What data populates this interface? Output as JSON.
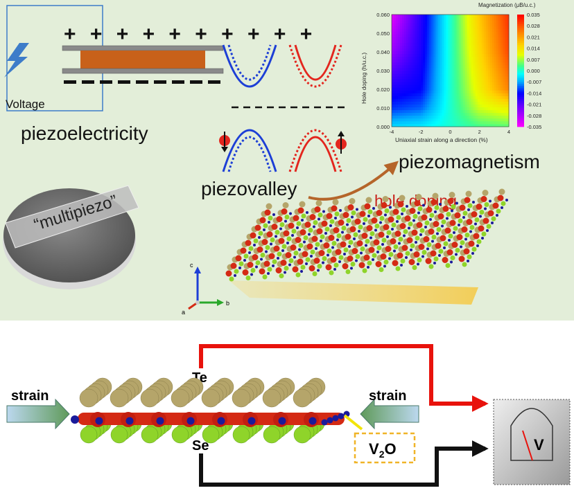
{
  "top_panel": {
    "voltage_label": "Voltage",
    "plus_signs": "+ + + + + + + + + +",
    "piezoelectricity_label": "piezoelectricity",
    "piezovalley_label": "piezovalley",
    "piezomagnetism_label": "piezomagnetism",
    "hole_doping_label": "hole doping",
    "disk_label": "“multipiezo”",
    "axis_labels": {
      "a": "a",
      "b": "b",
      "c": "c"
    }
  },
  "bottom_panel": {
    "strain_left": "strain",
    "strain_right": "strain",
    "te_label": "Te",
    "se_label": "Se",
    "v2o_label_main": "V",
    "v2o_label_sub": "2",
    "v2o_label_end": "O",
    "voltmeter_label": "V"
  },
  "colors": {
    "background_top": "#e3eed9",
    "plate_orange": "#c8611a",
    "band_blue": "#1d3fd6",
    "band_red": "#e3261e",
    "wire_red": "#e8120c",
    "wire_black": "#111111",
    "te_atom": "#b5a56a",
    "v_atom": "#d42a14",
    "o_atom": "#1a1a9a",
    "se_atom": "#8fd42a"
  },
  "chart_data": {
    "type": "heatmap",
    "title": "Magnetization (μB/u.c.)",
    "xlabel": "Uniaxial strain along  a direction (%)",
    "ylabel": "Hole doping (h/u.c.)",
    "xlim": [
      -4,
      4
    ],
    "ylim": [
      0,
      0.06
    ],
    "xticks": [
      "-4",
      "-2",
      "0",
      "2",
      "4"
    ],
    "yticks": [
      "0.000",
      "0.010",
      "0.020",
      "0.030",
      "0.040",
      "0.050",
      "0.060"
    ],
    "colorbar_ticks": [
      "0.035",
      "0.028",
      "0.021",
      "0.014",
      "0.007",
      "0.000",
      "-0.007",
      "-0.014",
      "-0.021",
      "-0.028",
      "-0.035"
    ],
    "colorbar_range": [
      -0.035,
      0.035
    ],
    "x": [
      -4,
      -2,
      0,
      2,
      4
    ],
    "y": [
      0,
      0.01,
      0.02,
      0.04,
      0.06
    ],
    "z": [
      [
        -0.004,
        -0.003,
        0.0,
        0.003,
        0.004
      ],
      [
        -0.012,
        -0.01,
        0.0,
        0.009,
        0.012
      ],
      [
        -0.016,
        -0.014,
        0.0,
        0.012,
        0.024
      ],
      [
        -0.026,
        -0.016,
        0.0,
        0.015,
        0.029
      ],
      [
        -0.033,
        -0.017,
        0.0,
        0.017,
        0.031
      ]
    ]
  }
}
